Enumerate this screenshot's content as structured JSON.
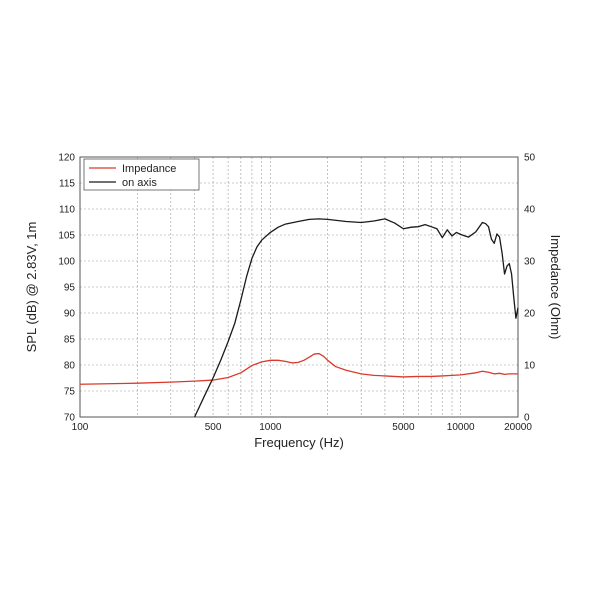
{
  "chart_data": {
    "type": "line",
    "x_scale": "log",
    "xlabel": "Frequency (Hz)",
    "ylabel_left": "SPL (dB) @ 2.83V, 1m",
    "ylabel_right": "Impedance (Ohm)",
    "xlim": [
      100,
      20000
    ],
    "ylim_left": [
      70,
      120
    ],
    "ylim_right": [
      0,
      50
    ],
    "x_tick_labels": [
      "100",
      "500",
      "1000",
      "5000",
      "10000",
      "20000"
    ],
    "x_tick_values": [
      100,
      500,
      1000,
      5000,
      10000,
      20000
    ],
    "y_left_ticks": [
      70,
      75,
      80,
      85,
      90,
      95,
      100,
      105,
      110,
      115,
      120
    ],
    "y_right_ticks": [
      0,
      10,
      20,
      30,
      40,
      50
    ],
    "grid": true,
    "legend_position": "top-left",
    "colors": {
      "impedance": "#d93a2b",
      "on_axis": "#1a1a1a",
      "grid": "#9a9a9a",
      "frame": "#555555"
    },
    "series": [
      {
        "name": "Impedance",
        "axis": "right",
        "color": "#d93a2b",
        "points": [
          [
            100,
            6.3
          ],
          [
            200,
            6.5
          ],
          [
            300,
            6.7
          ],
          [
            400,
            6.9
          ],
          [
            500,
            7.1
          ],
          [
            600,
            7.6
          ],
          [
            700,
            8.5
          ],
          [
            800,
            9.9
          ],
          [
            900,
            10.6
          ],
          [
            1000,
            10.9
          ],
          [
            1100,
            10.9
          ],
          [
            1200,
            10.7
          ],
          [
            1300,
            10.4
          ],
          [
            1400,
            10.5
          ],
          [
            1500,
            10.9
          ],
          [
            1600,
            11.5
          ],
          [
            1700,
            12.1
          ],
          [
            1800,
            12.2
          ],
          [
            1900,
            11.7
          ],
          [
            2000,
            10.9
          ],
          [
            2200,
            9.7
          ],
          [
            2500,
            9.0
          ],
          [
            3000,
            8.3
          ],
          [
            3500,
            8.0
          ],
          [
            4000,
            7.9
          ],
          [
            5000,
            7.7
          ],
          [
            6000,
            7.8
          ],
          [
            7000,
            7.8
          ],
          [
            8000,
            7.9
          ],
          [
            9000,
            8.0
          ],
          [
            10000,
            8.1
          ],
          [
            12000,
            8.5
          ],
          [
            13000,
            8.8
          ],
          [
            14000,
            8.6
          ],
          [
            15000,
            8.3
          ],
          [
            16000,
            8.4
          ],
          [
            17000,
            8.2
          ],
          [
            18000,
            8.3
          ],
          [
            20000,
            8.3
          ]
        ]
      },
      {
        "name": "on axis",
        "axis": "left",
        "color": "#1a1a1a",
        "points": [
          [
            400,
            70
          ],
          [
            450,
            74
          ],
          [
            500,
            77.5
          ],
          [
            550,
            81
          ],
          [
            600,
            84.5
          ],
          [
            650,
            88
          ],
          [
            700,
            92.5
          ],
          [
            750,
            97
          ],
          [
            800,
            100.5
          ],
          [
            850,
            102.7
          ],
          [
            900,
            104
          ],
          [
            1000,
            105.5
          ],
          [
            1100,
            106.5
          ],
          [
            1200,
            107.1
          ],
          [
            1400,
            107.6
          ],
          [
            1600,
            108
          ],
          [
            1800,
            108.1
          ],
          [
            2000,
            108
          ],
          [
            2500,
            107.6
          ],
          [
            3000,
            107.4
          ],
          [
            3500,
            107.7
          ],
          [
            4000,
            108.1
          ],
          [
            4500,
            107.3
          ],
          [
            5000,
            106.2
          ],
          [
            5500,
            106.5
          ],
          [
            6000,
            106.6
          ],
          [
            6500,
            107
          ],
          [
            7000,
            106.6
          ],
          [
            7500,
            106.2
          ],
          [
            8000,
            104.5
          ],
          [
            8500,
            106
          ],
          [
            9000,
            104.8
          ],
          [
            9500,
            105.5
          ],
          [
            10000,
            105.1
          ],
          [
            11000,
            104.6
          ],
          [
            12000,
            105.6
          ],
          [
            13000,
            107.4
          ],
          [
            13500,
            107.2
          ],
          [
            14000,
            106.6
          ],
          [
            14500,
            104.2
          ],
          [
            15000,
            103.4
          ],
          [
            15500,
            105.2
          ],
          [
            16000,
            104.6
          ],
          [
            16500,
            101.5
          ],
          [
            17000,
            97.5
          ],
          [
            17500,
            99
          ],
          [
            18000,
            99.5
          ],
          [
            18500,
            97.5
          ],
          [
            19000,
            93
          ],
          [
            19500,
            89
          ],
          [
            20000,
            91
          ]
        ]
      }
    ]
  }
}
